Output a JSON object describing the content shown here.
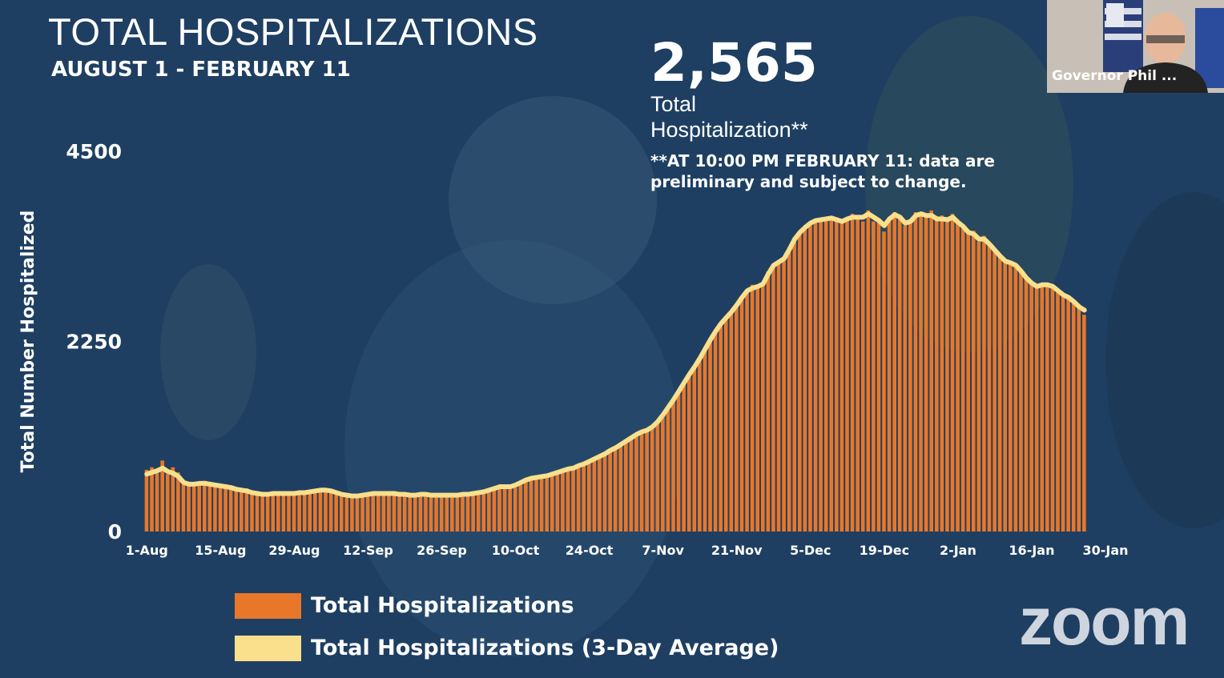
{
  "title": "TOTAL HOSPITALIZATIONS",
  "subtitle": "AUGUST 1 - FEBRUARY 11",
  "headline": {
    "value": "2,565",
    "label": "Total Hospitalization**",
    "note": "**AT 10:00 PM FEBRUARY 11: data are preliminary and subject to change."
  },
  "video_overlay": {
    "participant_name": "Governor Phil ...",
    "logo_text": "zoom"
  },
  "colors": {
    "bar": "#e8772a",
    "average_line": "#fadf8c",
    "text": "#ffffff",
    "background": "#1e3f62"
  },
  "chart_data": {
    "type": "bar",
    "ylabel": "Total Number Hospitalized",
    "xlabel": "",
    "ylim": [
      0,
      4500
    ],
    "yticks": [
      0,
      2250,
      4500
    ],
    "x_tick_labels": [
      "1-Aug",
      "15-Aug",
      "29-Aug",
      "12-Sep",
      "26-Sep",
      "10-Oct",
      "24-Oct",
      "7-Nov",
      "21-Nov",
      "5-Dec",
      "19-Dec",
      "2-Jan",
      "16-Jan",
      "30-Jan"
    ],
    "x_start": "1-Aug",
    "x_end": "11-Feb",
    "overlay_line": "Total Hospitalizations (3-Day Average)",
    "legend_placement": "bottom",
    "series": [
      {
        "name": "Total Hospitalizations",
        "values": [
          730,
          760,
          690,
          840,
          680,
          760,
          700,
          560,
          580,
          560,
          540,
          600,
          560,
          560,
          520,
          560,
          520,
          500,
          500,
          510,
          450,
          430,
          440,
          440,
          460,
          440,
          450,
          440,
          450,
          470,
          460,
          480,
          470,
          500,
          490,
          490,
          470,
          440,
          420,
          420,
          420,
          430,
          430,
          450,
          460,
          460,
          450,
          440,
          450,
          420,
          430,
          430,
          450,
          440,
          440,
          420,
          430,
          450,
          420,
          430,
          450,
          440,
          440,
          450,
          480,
          480,
          520,
          530,
          550,
          510,
          520,
          590,
          620,
          640,
          630,
          640,
          680,
          670,
          700,
          720,
          740,
          760,
          760,
          800,
          830,
          860,
          880,
          920,
          940,
          990,
          1020,
          1060,
          1110,
          1150,
          1180,
          1210,
          1220,
          1300,
          1380,
          1460,
          1560,
          1640,
          1760,
          1850,
          1950,
          2050,
          2150,
          2260,
          2380,
          2460,
          2540,
          2600,
          2680,
          2780,
          2860,
          2920,
          2890,
          2930,
          3080,
          3160,
          3200,
          3200,
          3360,
          3480,
          3530,
          3600,
          3660,
          3700,
          3680,
          3710,
          3720,
          3700,
          3650,
          3680,
          3760,
          3740,
          3670,
          3800,
          3670,
          3700,
          3550,
          3700,
          3780,
          3740,
          3620,
          3660,
          3780,
          3780,
          3730,
          3800,
          3700,
          3740,
          3680,
          3760,
          3660,
          3620,
          3520,
          3560,
          3430,
          3500,
          3400,
          3340,
          3260,
          3200,
          3180,
          3160,
          3090,
          2990,
          2930,
          2880,
          2910,
          2940,
          2900,
          2860,
          2800,
          2760,
          2700,
          2660,
          2565
        ]
      },
      {
        "name": "Total Hospitalizations (3-Day Average)",
        "values": [
          680,
          700,
          720,
          750,
          710,
          690,
          650,
          580,
          560,
          560,
          570,
          570,
          560,
          550,
          540,
          530,
          520,
          500,
          490,
          480,
          460,
          450,
          440,
          440,
          450,
          450,
          450,
          450,
          450,
          460,
          460,
          470,
          480,
          490,
          490,
          480,
          460,
          440,
          430,
          420,
          420,
          430,
          440,
          450,
          450,
          450,
          450,
          450,
          440,
          440,
          430,
          430,
          440,
          440,
          430,
          430,
          430,
          430,
          430,
          430,
          440,
          440,
          450,
          460,
          470,
          490,
          510,
          530,
          530,
          530,
          550,
          580,
          610,
          630,
          640,
          650,
          660,
          680,
          700,
          720,
          740,
          750,
          780,
          800,
          830,
          860,
          890,
          920,
          960,
          990,
          1030,
          1070,
          1110,
          1150,
          1180,
          1200,
          1240,
          1300,
          1380,
          1470,
          1560,
          1660,
          1760,
          1860,
          1950,
          2050,
          2160,
          2270,
          2370,
          2460,
          2530,
          2600,
          2680,
          2770,
          2850,
          2880,
          2900,
          2930,
          3050,
          3150,
          3190,
          3230,
          3340,
          3460,
          3540,
          3600,
          3650,
          3680,
          3690,
          3700,
          3710,
          3690,
          3670,
          3700,
          3720,
          3720,
          3720,
          3760,
          3720,
          3680,
          3620,
          3700,
          3750,
          3720,
          3650,
          3670,
          3740,
          3760,
          3740,
          3740,
          3700,
          3700,
          3690,
          3720,
          3660,
          3610,
          3540,
          3520,
          3460,
          3460,
          3400,
          3330,
          3260,
          3200,
          3180,
          3150,
          3080,
          3000,
          2940,
          2900,
          2920,
          2920,
          2900,
          2850,
          2800,
          2770,
          2720,
          2660,
          2620
        ]
      }
    ]
  }
}
